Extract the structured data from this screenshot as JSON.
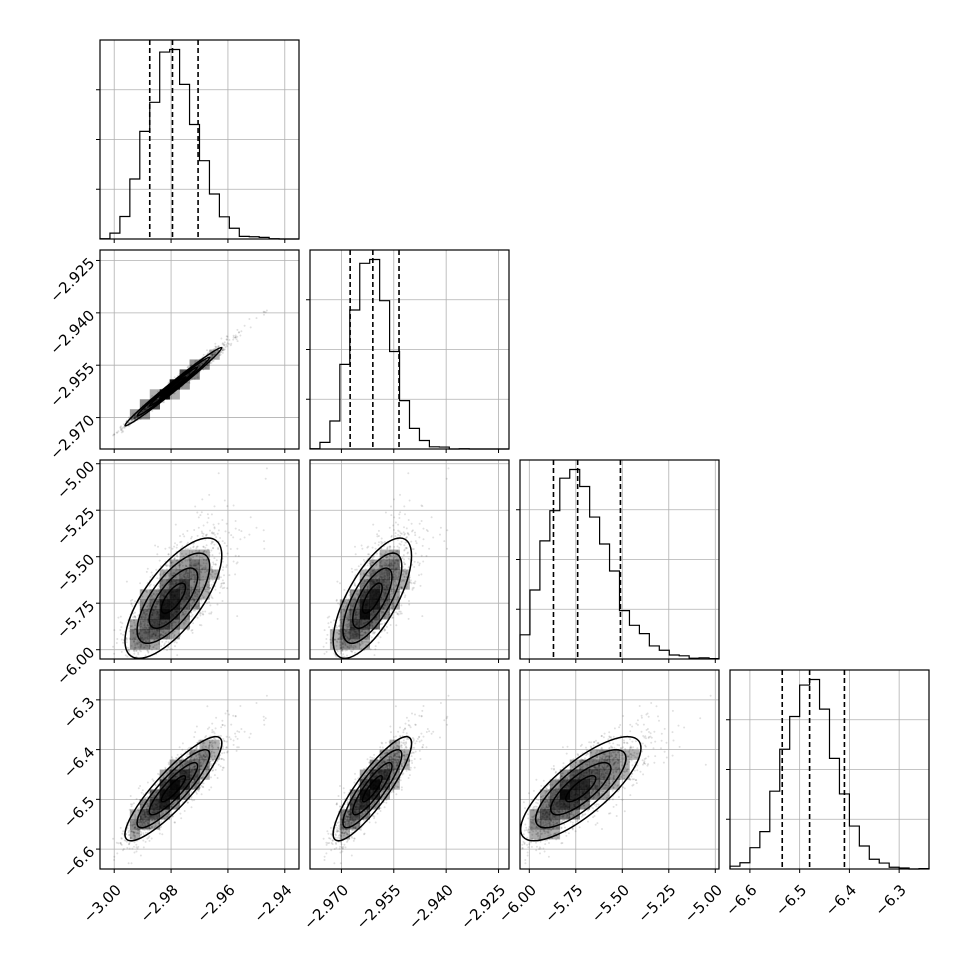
{
  "chart_data": {
    "type": "corner",
    "parameters": [
      {
        "range": [
          -3.005,
          -2.935
        ],
        "ticks": [
          -3.0,
          -2.98,
          -2.96,
          -2.94
        ],
        "tick_labels": [
          "−3.00",
          "−2.98",
          "−2.96",
          "−2.94"
        ],
        "mean": -2.979,
        "sd": 0.0085,
        "skew": 0.5,
        "quantiles": [
          -2.9875,
          -2.9795,
          -2.9705
        ]
      },
      {
        "range": [
          -2.979,
          -2.922
        ],
        "ticks": [
          -2.97,
          -2.955,
          -2.94,
          -2.925
        ],
        "tick_labels": [
          "−2.970",
          "−2.955",
          "−2.940",
          "−2.925"
        ],
        "mean": -2.961,
        "sd": 0.0056,
        "skew": 0.5,
        "quantiles": [
          -2.9675,
          -2.961,
          -2.9535
        ]
      },
      {
        "range": [
          -6.05,
          -4.98
        ],
        "ticks": [
          -6.0,
          -5.75,
          -5.5,
          -5.25,
          -5.0
        ],
        "tick_labels": [
          "−6.00",
          "−5.75",
          "−5.50",
          "−5.25",
          "−5.00"
        ],
        "mean": -5.72,
        "sd": 0.16,
        "skew": 1.0,
        "quantiles": [
          -5.87,
          -5.74,
          -5.51
        ]
      },
      {
        "range": [
          -6.64,
          -6.24
        ],
        "ticks": [
          -6.6,
          -6.5,
          -6.4,
          -6.3
        ],
        "tick_labels": [
          "−6.6",
          "−6.5",
          "−6.4",
          "−6.3"
        ],
        "mean": -6.478,
        "sd": 0.052,
        "skew": 0.2,
        "quantiles": [
          -6.535,
          -6.48,
          -6.41
        ]
      }
    ],
    "correlations": {
      "1-0": 0.99,
      "2-0": 0.72,
      "2-1": 0.72,
      "3-0": 0.88,
      "3-1": 0.88,
      "3-2": 0.82
    },
    "contour_levels": 3,
    "bins": 20,
    "grid": true,
    "colors": {
      "line": "#000000",
      "grid": "#b0b0b0",
      "points": "#000000",
      "density": "#000000"
    }
  }
}
